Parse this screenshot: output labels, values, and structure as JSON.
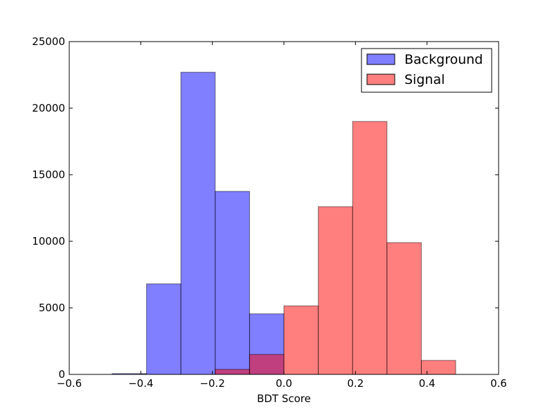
{
  "chart_data": {
    "type": "bar",
    "subtype": "histogram",
    "title": "",
    "xlabel": "BDT Score",
    "ylabel": "",
    "xlim": [
      -0.6,
      0.6
    ],
    "ylim": [
      0,
      25000
    ],
    "xticks": [
      -0.6,
      -0.4,
      -0.2,
      0.0,
      0.2,
      0.4,
      0.6
    ],
    "xtick_labels": [
      "−0.6",
      "−0.4",
      "−0.2",
      "0.0",
      "0.2",
      "0.4",
      "0.6"
    ],
    "yticks": [
      0,
      5000,
      10000,
      15000,
      20000,
      25000
    ],
    "ytick_labels": [
      "0",
      "5000",
      "10000",
      "15000",
      "20000",
      "25000"
    ],
    "grid": false,
    "legend_position": "top-right",
    "bin_edges": [
      -0.48,
      -0.384,
      -0.288,
      -0.192,
      -0.096,
      0.0,
      0.096,
      0.192,
      0.288,
      0.384,
      0.48
    ],
    "series": [
      {
        "name": "Background",
        "color": "#0000ff",
        "alpha": 0.5,
        "values": [
          60,
          6800,
          22700,
          13750,
          4550,
          0,
          0,
          0,
          0,
          0
        ]
      },
      {
        "name": "Signal",
        "color": "#ff0000",
        "alpha": 0.5,
        "values": [
          0,
          0,
          0,
          380,
          1500,
          5150,
          12600,
          19000,
          9900,
          1050
        ]
      }
    ]
  }
}
